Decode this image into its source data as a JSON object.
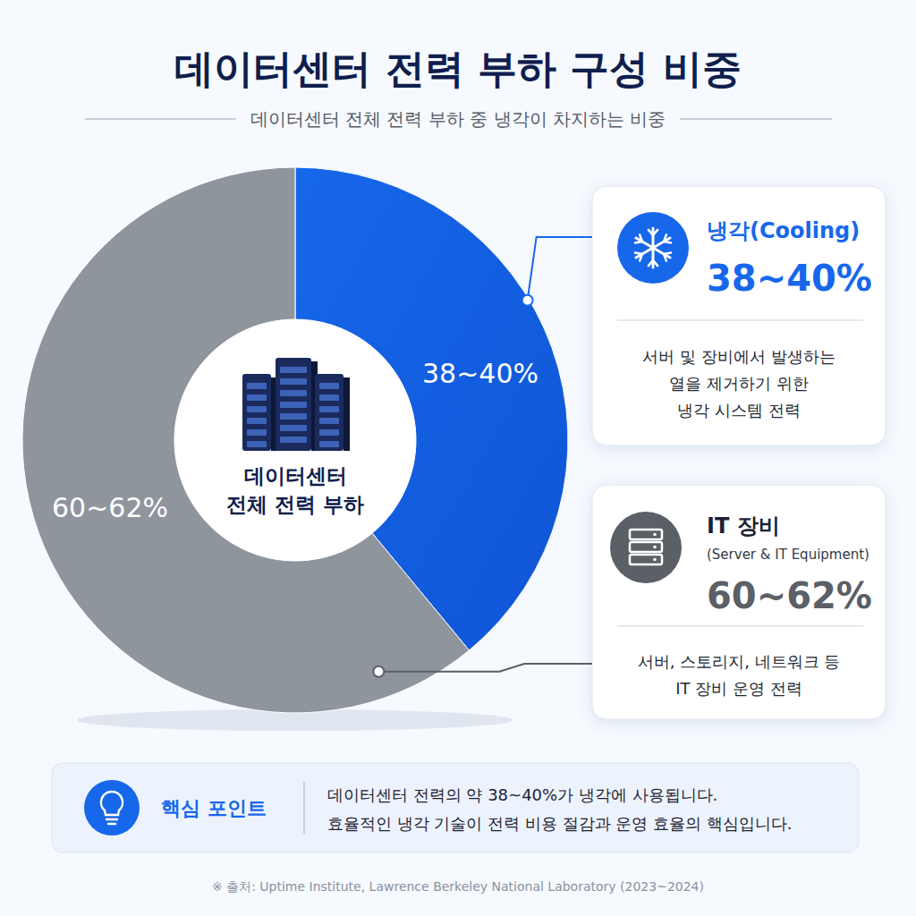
{
  "chart_data": {
    "type": "pie",
    "title": "데이터센터 전력 부하 구성 비중",
    "subtitle": "데이터센터 전체 전력 부하 중 냉각이 차지하는 비중",
    "center_label": [
      "데이터센터",
      "전체 전력 부하"
    ],
    "categories": [
      "냉각(Cooling)",
      "IT 장비"
    ],
    "category_subtitles": [
      null,
      "(Server & IT Equipment)"
    ],
    "values": [
      [
        38,
        40
      ],
      [
        60,
        62
      ]
    ],
    "value_labels": [
      "38~40%",
      "60~62%"
    ],
    "colors": [
      "#1767ea",
      "#8f959d"
    ],
    "data_labels": true,
    "descriptions": [
      [
        "서버 및 장비에서 발생하는",
        "열을 제거하기 위한",
        "냉각 시스템 전력"
      ],
      [
        "서버, 스토리지, 네트워크 등",
        "IT 장비 운영 전력"
      ]
    ],
    "annotations": [
      {
        "title": "핵심 포인트",
        "lines": [
          "데이터센터 전력의 약 38~40%가 냉각에 사용됩니다.",
          "효율적인 냉각 기술이 전력 비용 절감과 운영 효율의 핵심입니다."
        ]
      }
    ],
    "source": "※ 출처: Uptime Institute, Lawrence Berkeley National Laboratory (2023~2024)"
  }
}
